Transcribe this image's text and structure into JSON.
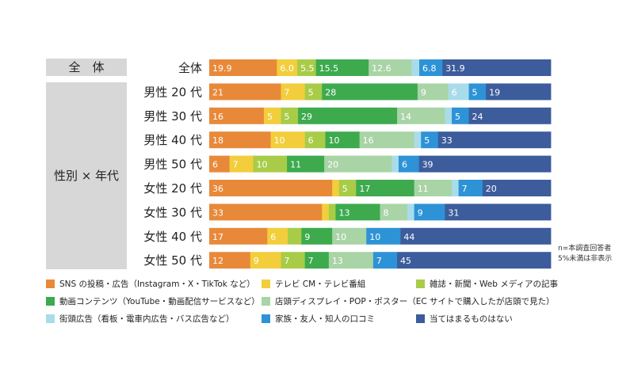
{
  "group_labels": {
    "overall": "全　体",
    "segment": "性別 × 年代"
  },
  "notes": [
    "n=本調査回答者",
    "5%未満は非表示"
  ],
  "colors": {
    "sns": "#E8893A",
    "tv": "#F2CE3C",
    "magazine": "#A8CC47",
    "video": "#3DAA4E",
    "store": "#A9D4A6",
    "street": "#A9DCEA",
    "family": "#2D93D6",
    "none": "#3C5C9C"
  },
  "chart_data": {
    "type": "bar",
    "orientation": "horizontal",
    "stacked": true,
    "normalized_to": 100,
    "categories": [
      "全体",
      "男性 20 代",
      "男性 30 代",
      "男性 40 代",
      "男性 50 代",
      "女性 20 代",
      "女性 30 代",
      "女性 40 代",
      "女性 50 代"
    ],
    "series": [
      {
        "key": "sns",
        "name": "SNS の投稿・広告（Instagram・X・TikTok など）",
        "values": [
          19.9,
          21,
          16,
          18,
          6,
          36,
          33,
          17,
          12
        ],
        "labels": [
          "19.9",
          "21",
          "16",
          "18",
          "6",
          "36",
          "33",
          "17",
          "12"
        ]
      },
      {
        "key": "tv",
        "name": "テレビ CM・テレビ番組",
        "values": [
          6.0,
          7,
          5,
          10,
          7,
          2,
          2,
          6,
          9
        ],
        "labels": [
          "6.0",
          "7",
          "5",
          "10",
          "7",
          "",
          "",
          "6",
          "9"
        ]
      },
      {
        "key": "magazine",
        "name": "雑誌・新聞・Web メディアの記事",
        "values": [
          5.5,
          5,
          5,
          6,
          10,
          5,
          2,
          4,
          7
        ],
        "labels": [
          "5.5",
          "5",
          "5",
          "6",
          "10",
          "5",
          "",
          "",
          "7"
        ]
      },
      {
        "key": "video",
        "name": "動画コンテンツ（YouTube・動画配信サービスなど）",
        "values": [
          15.5,
          28,
          29,
          10,
          11,
          17,
          13,
          9,
          7
        ],
        "labels": [
          "15.5",
          "28",
          "29",
          "10",
          "11",
          "17",
          "13",
          "9",
          "7"
        ]
      },
      {
        "key": "store",
        "name": "店頭ディスプレイ・POP・ポスター（EC サイトで購入したが店頭で見た）",
        "values": [
          12.6,
          9,
          14,
          16,
          20,
          11,
          8,
          10,
          13
        ],
        "labels": [
          "12.6",
          "9",
          "14",
          "16",
          "20",
          "11",
          "8",
          "10",
          "13"
        ]
      },
      {
        "key": "street",
        "name": "街頭広告（看板・電車内広告・バス広告など）",
        "values": [
          2.3,
          6,
          2,
          2,
          2,
          2,
          2,
          0,
          0
        ],
        "labels": [
          "",
          "6",
          "",
          "",
          "",
          "",
          "",
          "",
          ""
        ]
      },
      {
        "key": "family",
        "name": "家族・友人・知人の口コミ",
        "values": [
          6.8,
          5,
          5,
          5,
          6,
          7,
          9,
          10,
          7
        ],
        "labels": [
          "6.8",
          "5",
          "5",
          "5",
          "6",
          "7",
          "9",
          "10",
          "7"
        ]
      },
      {
        "key": "none",
        "name": "当てはまるものはない",
        "values": [
          31.9,
          19,
          24,
          33,
          39,
          20,
          31,
          44,
          45
        ],
        "labels": [
          "31.9",
          "19",
          "24",
          "33",
          "39",
          "20",
          "31",
          "44",
          "45"
        ]
      }
    ],
    "legend_position": "bottom"
  }
}
